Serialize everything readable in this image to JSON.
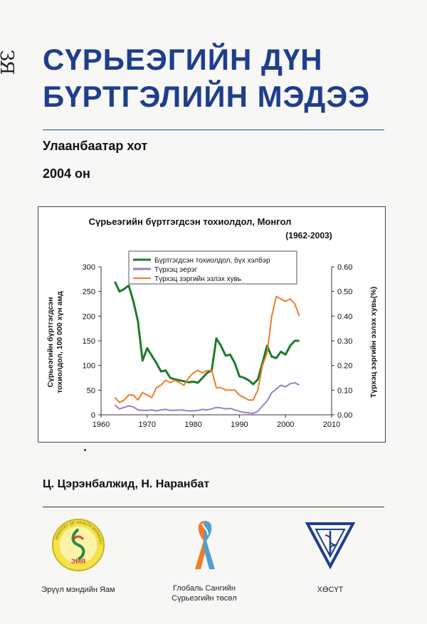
{
  "cover": {
    "spine_mark": "ЗЯ",
    "title_line1": "СҮРЬЕЭГИЙН ДҮН",
    "title_line2": "БҮРТГЭЛИЙН МЭДЭЭ",
    "city": "Улаанбаатар хот",
    "year": "2004 он",
    "authors": "Ц. Цэрэнбалжид, Н. Наранбат"
  },
  "logos": [
    {
      "name": "ministry-of-health-logo",
      "caption": "Эрүүл мэндийн Яам",
      "badge": "ЭМЯ",
      "ring_text": "MINISTRY OF HEALTH MONGOLIA"
    },
    {
      "name": "global-fund-logo",
      "caption_line1": "Глобаль Сангийн",
      "caption_line2": "Сүрьеэгийн төсөл"
    },
    {
      "name": "hosut-logo",
      "caption": "ХӨСҮТ"
    }
  ],
  "chart_data": {
    "type": "line",
    "title": "Сүрьеэгийн бүртгэгдсэн тохиолдол, Монгол",
    "subtitle": "(1962-2003)",
    "ylabel_left_line1": "Сүрьеэгийн бүртгэгдсэн",
    "ylabel_left_line2": "тохиолдол, 100 000 хүн амд",
    "ylabel_right": "Түрхэц зэргийн эзлэх хувь(%)",
    "xlim": [
      1960,
      2010
    ],
    "ylim_left": [
      0,
      300
    ],
    "ylim_right": [
      0,
      0.6
    ],
    "x_ticks": [
      "1960",
      "1970",
      "1980",
      "1990",
      "2000",
      "2010"
    ],
    "y_ticks_left": [
      "0",
      "50",
      "100",
      "150",
      "200",
      "250",
      "300"
    ],
    "y_ticks_right": [
      "0.00",
      "0.10",
      "0.20",
      "0.30",
      "0.40",
      "0.50",
      "0.60"
    ],
    "legend_position": "top-right",
    "grid": false,
    "series": [
      {
        "name": "Бүртгэгдсэн тохиолдол, бүх хэлбэр",
        "color": "#1f7a2e",
        "axis": "left",
        "x": [
          1963,
          1964,
          1965,
          1966,
          1967,
          1968,
          1969,
          1970,
          1971,
          1972,
          1973,
          1974,
          1975,
          1976,
          1977,
          1978,
          1979,
          1980,
          1981,
          1982,
          1983,
          1984,
          1985,
          1986,
          1987,
          1988,
          1989,
          1990,
          1991,
          1992,
          1993,
          1994,
          1995,
          1996,
          1997,
          1998,
          1999,
          2000,
          2001,
          2002,
          2003
        ],
        "values": [
          270,
          250,
          255,
          262,
          230,
          190,
          110,
          135,
          120,
          105,
          88,
          90,
          75,
          72,
          70,
          68,
          66,
          67,
          65,
          75,
          85,
          90,
          155,
          140,
          120,
          122,
          105,
          78,
          75,
          70,
          62,
          72,
          105,
          140,
          118,
          115,
          128,
          122,
          140,
          150,
          150
        ]
      },
      {
        "name": "Түрхэц эерэг",
        "color": "#9b7fc2",
        "axis": "left",
        "x": [
          1963,
          1964,
          1965,
          1966,
          1967,
          1968,
          1969,
          1970,
          1971,
          1972,
          1973,
          1974,
          1975,
          1976,
          1977,
          1978,
          1979,
          1980,
          1981,
          1982,
          1983,
          1984,
          1985,
          1986,
          1987,
          1988,
          1989,
          1990,
          1991,
          1992,
          1993,
          1994,
          1995,
          1996,
          1997,
          1998,
          1999,
          2000,
          2001,
          2002,
          2003
        ],
        "values": [
          20,
          12,
          15,
          18,
          16,
          10,
          9,
          9,
          10,
          8,
          10,
          11,
          9,
          9,
          10,
          9,
          8,
          8,
          9,
          11,
          10,
          12,
          15,
          14,
          12,
          13,
          10,
          7,
          5,
          4,
          3,
          7,
          18,
          28,
          45,
          52,
          60,
          57,
          63,
          65,
          60
        ]
      },
      {
        "name": "Түрхэц зэргийн эзлэх хувь",
        "color": "#f07c2a",
        "axis": "right",
        "x": [
          1963,
          1964,
          1965,
          1966,
          1967,
          1968,
          1969,
          1970,
          1971,
          1972,
          1973,
          1974,
          1975,
          1976,
          1977,
          1978,
          1979,
          1980,
          1981,
          1982,
          1983,
          1984,
          1985,
          1986,
          1987,
          1988,
          1989,
          1990,
          1991,
          1992,
          1993,
          1994,
          1995,
          1996,
          1997,
          1998,
          1999,
          2000,
          2001,
          2002,
          2003
        ],
        "values": [
          0.07,
          0.05,
          0.06,
          0.08,
          0.08,
          0.06,
          0.09,
          0.08,
          0.07,
          0.11,
          0.12,
          0.14,
          0.13,
          0.14,
          0.13,
          0.12,
          0.15,
          0.17,
          0.18,
          0.17,
          0.18,
          0.18,
          0.11,
          0.11,
          0.1,
          0.1,
          0.1,
          0.08,
          0.07,
          0.06,
          0.06,
          0.1,
          0.2,
          0.25,
          0.4,
          0.48,
          0.47,
          0.46,
          0.47,
          0.45,
          0.4
        ]
      }
    ]
  }
}
